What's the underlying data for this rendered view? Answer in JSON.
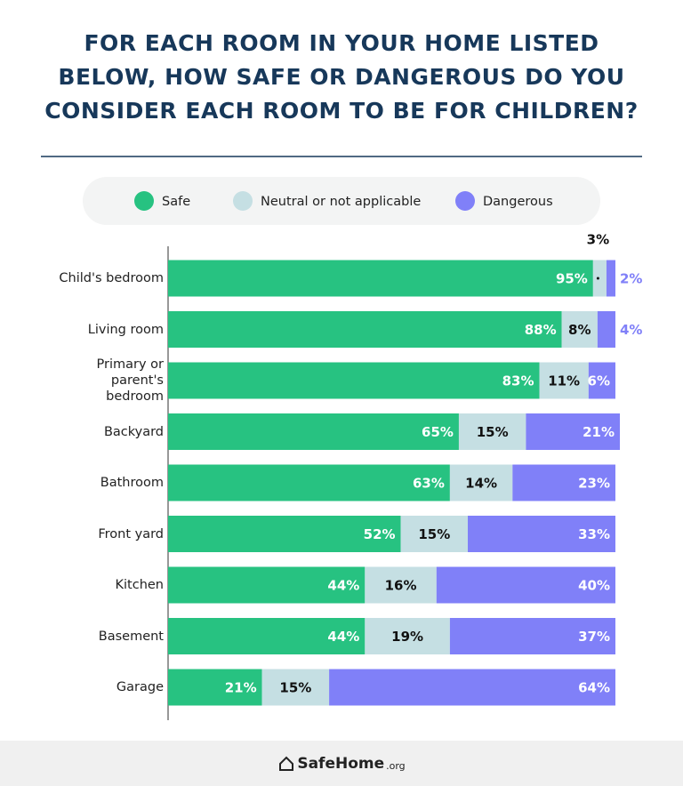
{
  "chart_data": {
    "type": "stacked-bar-horizontal",
    "title": "FOR EACH ROOM IN YOUR HOME LISTED BELOW, HOW SAFE OR DANGEROUS DO YOU CONSIDER EACH ROOM TO BE FOR CHILDREN?",
    "categories": [
      "Child's bedroom",
      "Living room",
      "Primary or parent's bedroom",
      "Backyard",
      "Bathroom",
      "Front yard",
      "Kitchen",
      "Basement",
      "Garage"
    ],
    "series": [
      {
        "name": "Safe",
        "color": "#27c281",
        "values": [
          95,
          88,
          83,
          65,
          63,
          52,
          44,
          44,
          21
        ],
        "value_labels": [
          "95%",
          "88%",
          "83%",
          "65%",
          "63%",
          "52%",
          "44%",
          "44%",
          "21%"
        ]
      },
      {
        "name": "Neutral or not applicable",
        "color": "#c5dfe3",
        "values": [
          3,
          8,
          11,
          15,
          14,
          15,
          16,
          19,
          15
        ],
        "value_labels": [
          "3%",
          "8%",
          "11%",
          "15%",
          "14%",
          "15%",
          "16%",
          "19%",
          "15%"
        ]
      },
      {
        "name": "Dangerous",
        "color": "#8080f8",
        "values": [
          2,
          4,
          6,
          21,
          23,
          33,
          40,
          37,
          64
        ],
        "value_labels": [
          "2%",
          "4%",
          "6%",
          "21%",
          "23%",
          "33%",
          "40%",
          "37%",
          "64%"
        ]
      }
    ],
    "brand": "SafeHome",
    "brand_suffix": ".org"
  }
}
